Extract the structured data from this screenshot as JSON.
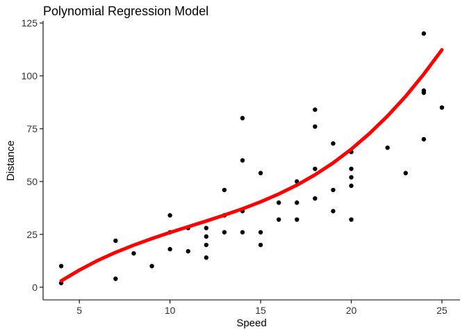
{
  "chart_data": {
    "type": "scatter",
    "title": "Polynomial Regression Model",
    "xlabel": "Speed",
    "ylabel": "Distance",
    "xlim": [
      3.0,
      26.0
    ],
    "ylim": [
      -6.0,
      126.0
    ],
    "x_ticks": [
      5,
      10,
      15,
      20,
      25
    ],
    "y_ticks": [
      0,
      25,
      50,
      75,
      100,
      125
    ],
    "grid": false,
    "legend": "none",
    "point_color": "#000000",
    "series": [
      {
        "type": "scatter",
        "x": [
          4,
          4,
          7,
          7,
          8,
          9,
          10,
          10,
          10,
          11,
          11,
          12,
          12,
          12,
          12,
          13,
          13,
          13,
          13,
          14,
          14,
          14,
          14,
          15,
          15,
          15,
          16,
          16,
          17,
          17,
          17,
          18,
          18,
          18,
          18,
          19,
          19,
          19,
          20,
          20,
          20,
          20,
          20,
          22,
          23,
          24,
          24,
          24,
          24,
          25
        ],
        "y": [
          2,
          10,
          4,
          22,
          16,
          10,
          18,
          26,
          34,
          17,
          28,
          14,
          20,
          24,
          28,
          26,
          34,
          34,
          46,
          26,
          36,
          60,
          80,
          20,
          26,
          54,
          32,
          40,
          32,
          40,
          50,
          42,
          56,
          76,
          84,
          36,
          46,
          68,
          32,
          48,
          52,
          56,
          64,
          66,
          54,
          70,
          92,
          93,
          120,
          85
        ]
      },
      {
        "type": "line",
        "color": "#ff0000",
        "x": [
          4,
          5,
          6,
          7,
          8,
          9,
          10,
          11,
          12,
          13,
          14,
          15,
          16,
          17,
          18,
          19,
          20,
          21,
          22,
          23,
          24,
          25
        ],
        "y": [
          3.0,
          8.1,
          12.6,
          16.5,
          19.9,
          23.0,
          25.9,
          28.6,
          31.3,
          34.1,
          37.1,
          40.4,
          44.1,
          48.3,
          53.2,
          58.8,
          65.3,
          72.7,
          81.0,
          90.3,
          100.8,
          112.3
        ]
      }
    ]
  }
}
